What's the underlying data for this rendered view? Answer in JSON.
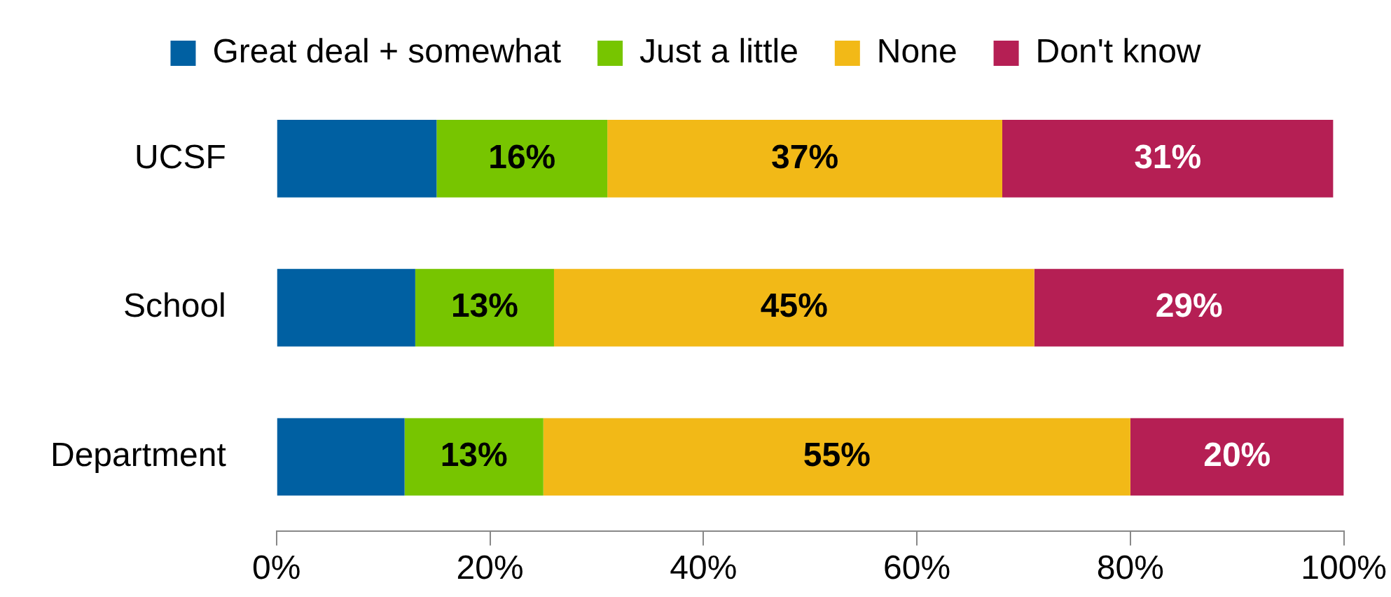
{
  "chart_data": {
    "type": "bar",
    "orientation": "horizontal",
    "stacked": true,
    "legend": "top",
    "grid": false,
    "categories": [
      "UCSF",
      "School",
      "Department"
    ],
    "series": [
      {
        "name": "Great deal + somewhat",
        "color": "#0060a2",
        "values": [
          15,
          13,
          12
        ],
        "value_labels": [
          null,
          null,
          null
        ]
      },
      {
        "name": "Just a little",
        "color": "#77c500",
        "values": [
          16,
          13,
          13
        ],
        "value_labels": [
          "16%",
          "13%",
          "13%"
        ]
      },
      {
        "name": "None",
        "color": "#f2b917",
        "values": [
          37,
          45,
          55
        ],
        "value_labels": [
          "37%",
          "45%",
          "55%"
        ]
      },
      {
        "name": "Don't know",
        "color": "#b51f54",
        "values": [
          31,
          29,
          20
        ],
        "value_labels": [
          "31%",
          "29%",
          "20%"
        ]
      }
    ],
    "xlim": [
      0,
      100
    ],
    "xticks": [
      {
        "value": 0,
        "label": "0%"
      },
      {
        "value": 20,
        "label": "20%"
      },
      {
        "value": 40,
        "label": "40%"
      },
      {
        "value": 60,
        "label": "60%"
      },
      {
        "value": 80,
        "label": "80%"
      },
      {
        "value": 100,
        "label": "100%"
      }
    ]
  }
}
